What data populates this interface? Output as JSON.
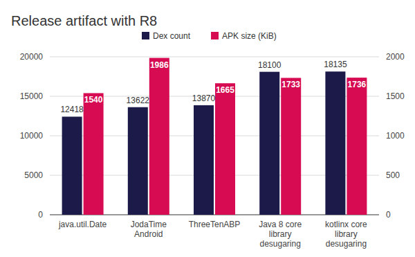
{
  "chart_data": {
    "type": "bar",
    "title": "Release artifact with R8",
    "categories": [
      "java.util.Date",
      "JodaTime Android",
      "ThreeTenABP",
      "Java 8 core library desugaring",
      "kotlinx core library desugaring"
    ],
    "series": [
      {
        "name": "Dex count",
        "color": "#1c1a48",
        "values": [
          12418,
          13622,
          13870,
          18100,
          18135
        ]
      },
      {
        "name": "APK size (KiB)",
        "color": "#d60b52",
        "axis": "y2",
        "values": [
          1540,
          1986,
          1665,
          1733,
          1736
        ]
      }
    ],
    "ylim": [
      0,
      20000
    ],
    "yticks": [
      0,
      5000,
      10000,
      15000,
      20000
    ],
    "y2lim": [
      0,
      2000
    ],
    "y2ticks": [
      0,
      500,
      1000,
      1500,
      2000
    ],
    "grid": true,
    "legend": "top",
    "data_labels": true
  }
}
